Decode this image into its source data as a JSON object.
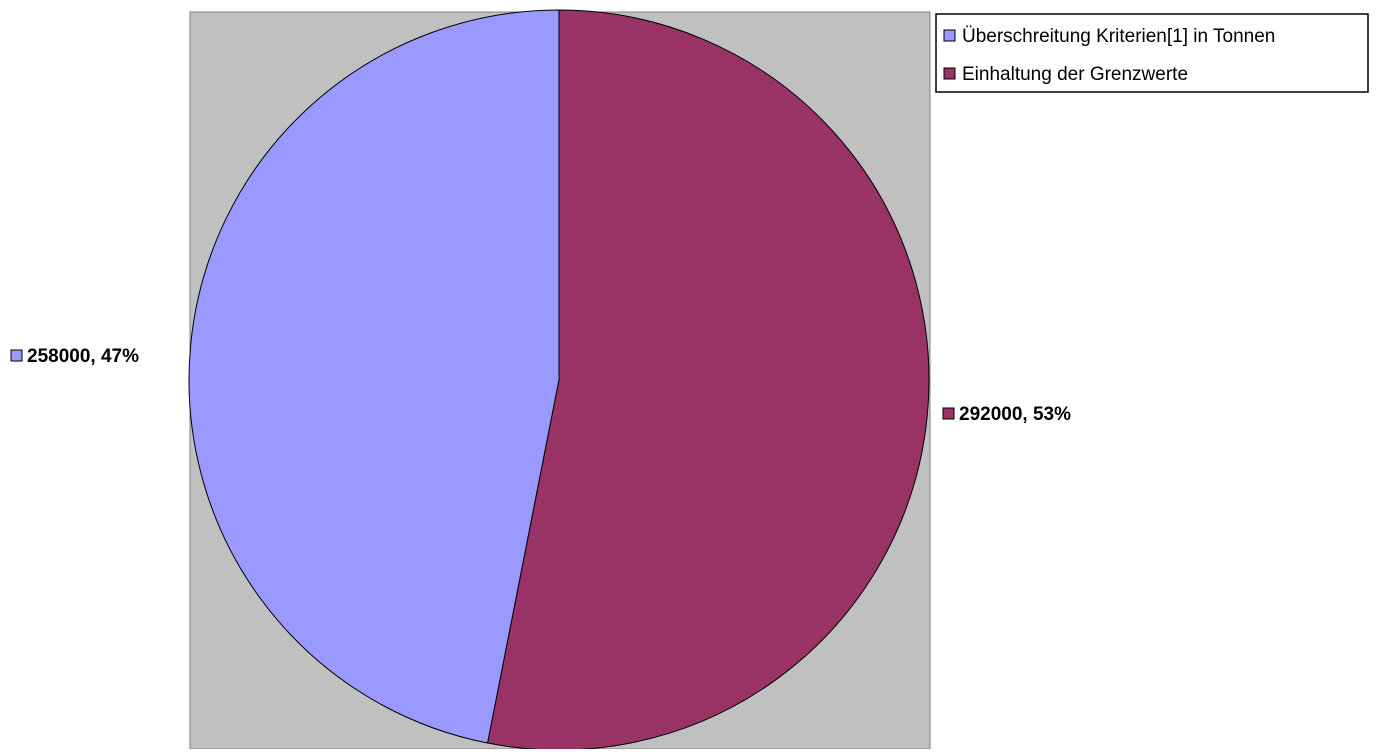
{
  "chart_data": {
    "type": "pie",
    "title": "",
    "series": [
      {
        "name": "Überschreitung Kriterien[1] in Tonnen",
        "value": 258000,
        "percent": 47,
        "label": "258000, 47%",
        "color": "#9999ff"
      },
      {
        "name": "Einhaltung der Grenzwerte",
        "value": 292000,
        "percent": 53,
        "label": "292000, 53%",
        "color": "#993366"
      }
    ],
    "legend_position": "top-right",
    "plot_area_color": "#c0c0c0"
  }
}
